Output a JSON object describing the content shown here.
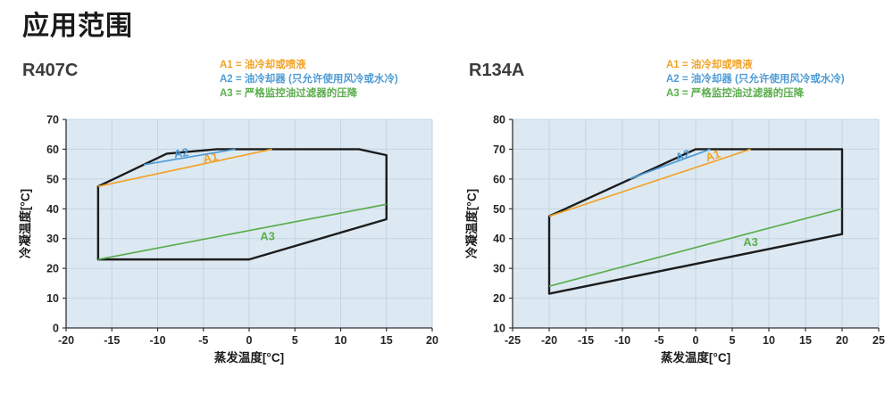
{
  "page_title": "应用范围",
  "colors": {
    "a1": "#F2A327",
    "a2": "#4F9CD5",
    "a3": "#5BAD4E",
    "envelope": "#1C1C1C",
    "plot_bg": "#DCE9F3",
    "grid": "#C4D4E2",
    "axis": "#333333",
    "tick_text": "#262626"
  },
  "legend": {
    "items": [
      {
        "id": "A1",
        "text": "A1 = 油冷却或喷液",
        "color": "#F2A327"
      },
      {
        "id": "A2",
        "text": "A2 = 油冷却器 (只允许使用风冷或水冷)",
        "color": "#4F9CD5"
      },
      {
        "id": "A3",
        "text": "A3 = 严格监控油过滤器的压降",
        "color": "#5BAD4E"
      }
    ]
  },
  "chart_data": [
    {
      "type": "line",
      "name": "R407C",
      "xlabel": "蒸发温度[°C]",
      "ylabel": "冷凝温度[°C]",
      "xlim": [
        -20,
        20
      ],
      "ylim": [
        0,
        70
      ],
      "x_ticks": [
        -20,
        -15,
        -10,
        -5,
        0,
        5,
        10,
        15,
        20
      ],
      "y_ticks": [
        0,
        10,
        20,
        30,
        40,
        50,
        60,
        70
      ],
      "grid": true,
      "envelope": [
        [
          -16.5,
          47.5
        ],
        [
          -9,
          58.5
        ],
        [
          -3.5,
          60
        ],
        [
          12,
          60
        ],
        [
          15,
          58
        ],
        [
          15,
          36.5
        ],
        [
          0,
          23
        ],
        [
          -16.5,
          23
        ]
      ],
      "series": [
        {
          "name": "A1",
          "color": "#F2A327",
          "points": [
            [
              -16.5,
              47.5
            ],
            [
              2.5,
              60
            ]
          ],
          "label": {
            "text": "A1",
            "at": [
              -4.2,
              56.9
            ],
            "rotate_with_line": true
          }
        },
        {
          "name": "A2",
          "color": "#4F9CD5",
          "points": [
            [
              -11.5,
              54.8
            ],
            [
              -1.5,
              60
            ]
          ],
          "label": {
            "text": "A2",
            "at": [
              -7.4,
              58.4
            ],
            "rotate_with_line": true
          }
        },
        {
          "name": "A3",
          "color": "#5BAD4E",
          "points": [
            [
              -16.5,
              23
            ],
            [
              15,
              41.5
            ]
          ],
          "label": {
            "text": "A3",
            "at": [
              2,
              30.5
            ],
            "rotate_with_line": false
          }
        }
      ]
    },
    {
      "type": "line",
      "name": "R134A",
      "xlabel": "蒸发温度[°C]",
      "ylabel": "冷凝温度[°C]",
      "xlim": [
        -25,
        25
      ],
      "ylim": [
        10,
        80
      ],
      "x_ticks": [
        -25,
        -20,
        -15,
        -10,
        -5,
        0,
        5,
        10,
        15,
        20,
        25
      ],
      "y_ticks": [
        10,
        20,
        30,
        40,
        50,
        60,
        70,
        80
      ],
      "grid": true,
      "envelope": [
        [
          -20,
          47.5
        ],
        [
          0,
          70
        ],
        [
          20,
          70
        ],
        [
          20,
          41.5
        ],
        [
          -20,
          21.5
        ]
      ],
      "series": [
        {
          "name": "A1",
          "color": "#F2A327",
          "points": [
            [
              -20,
              47.5
            ],
            [
              7.5,
              70
            ]
          ],
          "label": {
            "text": "A1",
            "at": [
              2.4,
              67.6
            ],
            "rotate_with_line": true
          }
        },
        {
          "name": "A2",
          "color": "#4F9CD5",
          "points": [
            [
              -9,
              60.1
            ],
            [
              2,
              70
            ]
          ],
          "label": {
            "text": "A2",
            "at": [
              -1.7,
              67.6
            ],
            "rotate_with_line": true
          }
        },
        {
          "name": "A3",
          "color": "#5BAD4E",
          "points": [
            [
              -20,
              24
            ],
            [
              20,
              50
            ]
          ],
          "label": {
            "text": "A3",
            "at": [
              7.5,
              38.5
            ],
            "rotate_with_line": false
          }
        }
      ]
    }
  ]
}
